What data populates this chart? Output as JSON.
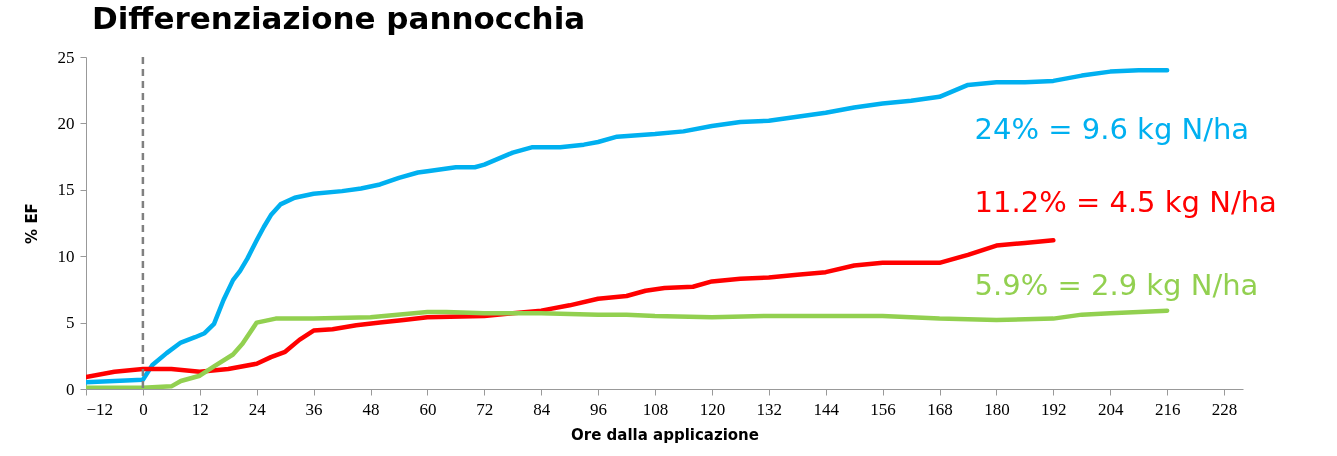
{
  "chart_data": {
    "type": "line",
    "title": "Differenziazione pannocchia",
    "xlabel": "Ore dalla applicazione",
    "ylabel": "% EF",
    "xlim": [
      -12,
      232
    ],
    "xticks": [
      -12,
      0,
      12,
      24,
      36,
      48,
      60,
      72,
      84,
      96,
      108,
      120,
      132,
      144,
      156,
      168,
      180,
      192,
      204,
      216,
      228
    ],
    "ylim": [
      0,
      25
    ],
    "yticks": [
      0,
      5,
      10,
      15,
      20,
      25
    ],
    "grid": false,
    "marker": "none",
    "line_style": "solid",
    "ref_lines": [
      {
        "axis": "x",
        "value": 0,
        "color": "#808080",
        "line_style": "dashed"
      }
    ],
    "series": [
      {
        "name": "24% = 9.6 kg N/ha",
        "color": "#00b0f0",
        "x": [
          -12,
          0,
          2,
          5,
          8,
          11,
          13,
          15,
          17,
          19,
          20.5,
          22,
          24,
          25.5,
          27,
          29,
          32,
          36,
          42,
          46,
          50,
          54,
          58,
          60,
          66,
          70,
          72,
          78,
          82,
          88,
          93,
          96,
          100,
          108,
          114,
          120,
          126,
          132,
          138,
          144,
          150,
          156,
          162,
          168,
          174,
          180,
          186,
          192,
          198,
          204,
          210,
          216
        ],
        "values": [
          0.5,
          0.7,
          1.8,
          2.7,
          3.5,
          3.9,
          4.2,
          4.9,
          6.7,
          8.2,
          8.9,
          9.8,
          11.2,
          12.2,
          13.1,
          13.9,
          14.4,
          14.7,
          14.9,
          15.1,
          15.4,
          15.9,
          16.3,
          16.4,
          16.7,
          16.7,
          16.9,
          17.8,
          18.2,
          18.2,
          18.4,
          18.6,
          19.0,
          19.2,
          19.4,
          19.8,
          20.1,
          20.2,
          20.5,
          20.8,
          21.2,
          21.5,
          21.7,
          22.0,
          22.9,
          23.1,
          23.1,
          23.2,
          23.6,
          23.9,
          24.0,
          24.0
        ]
      },
      {
        "name": "11.2% = 4.5 kg N/ha",
        "color": "#ff0000",
        "x": [
          -12,
          -6,
          0,
          6,
          12,
          18,
          24,
          27,
          30,
          33,
          36,
          40,
          45,
          50,
          55,
          60,
          72,
          78,
          84,
          90,
          96,
          102,
          106,
          110,
          116,
          120,
          126,
          132,
          138,
          144,
          150,
          156,
          162,
          168,
          174,
          180,
          186,
          192
        ],
        "values": [
          0.9,
          1.3,
          1.5,
          1.5,
          1.3,
          1.5,
          1.9,
          2.4,
          2.8,
          3.7,
          4.4,
          4.5,
          4.8,
          5.0,
          5.2,
          5.4,
          5.5,
          5.7,
          5.9,
          6.3,
          6.8,
          7.0,
          7.4,
          7.6,
          7.7,
          8.1,
          8.3,
          8.4,
          8.6,
          8.8,
          9.3,
          9.5,
          9.5,
          9.5,
          10.1,
          10.8,
          11.0,
          11.2
        ]
      },
      {
        "name": "5.9% = 2.9 kg N/ha",
        "color": "#92d050",
        "x": [
          -12,
          0,
          6,
          8,
          12,
          15,
          19,
          21,
          24,
          28,
          36,
          48,
          60,
          64,
          72,
          84,
          96,
          102,
          108,
          120,
          132,
          144,
          156,
          168,
          180,
          192,
          198,
          204,
          216
        ],
        "values": [
          0.1,
          0.1,
          0.2,
          0.6,
          1.0,
          1.7,
          2.6,
          3.4,
          5.0,
          5.3,
          5.3,
          5.4,
          5.8,
          5.8,
          5.7,
          5.7,
          5.6,
          5.6,
          5.5,
          5.4,
          5.5,
          5.5,
          5.5,
          5.3,
          5.2,
          5.3,
          5.6,
          5.7,
          5.9
        ]
      }
    ]
  }
}
